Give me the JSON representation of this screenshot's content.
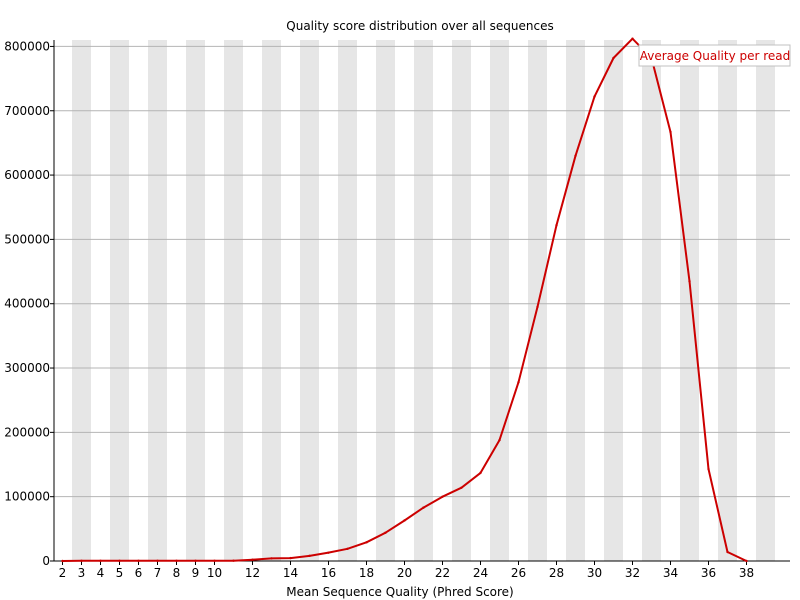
{
  "chart_data": {
    "type": "line",
    "title": "Quality score distribution over all sequences",
    "xlabel": "Mean Sequence Quality (Phred Score)",
    "ylabel": "",
    "legend_position": "top-right",
    "grid": true,
    "xlim": [
      2,
      38
    ],
    "ylim": [
      0,
      810000
    ],
    "x_ticks": [
      2,
      3,
      4,
      5,
      6,
      7,
      8,
      9,
      10,
      12,
      14,
      16,
      18,
      20,
      22,
      24,
      26,
      28,
      30,
      32,
      34,
      36,
      38
    ],
    "y_ticks": [
      0,
      100000,
      200000,
      300000,
      400000,
      500000,
      600000,
      700000,
      800000
    ],
    "series": [
      {
        "name": "Average Quality per read",
        "color": "#cc0000",
        "x": [
          2,
          3,
          4,
          5,
          6,
          7,
          8,
          9,
          10,
          11,
          12,
          13,
          14,
          15,
          16,
          17,
          18,
          19,
          20,
          21,
          22,
          23,
          24,
          25,
          26,
          27,
          28,
          29,
          30,
          31,
          32,
          33,
          34,
          35,
          36,
          37,
          38
        ],
        "values": [
          0,
          300,
          300,
          300,
          300,
          300,
          300,
          300,
          300,
          500,
          2000,
          4000,
          4500,
          8000,
          13000,
          19000,
          29000,
          44000,
          63000,
          83000,
          100000,
          114000,
          137000,
          188000,
          278000,
          395000,
          522000,
          630000,
          722000,
          782000,
          812000,
          782000,
          667000,
          435000,
          143000,
          14000,
          0
        ]
      }
    ]
  }
}
